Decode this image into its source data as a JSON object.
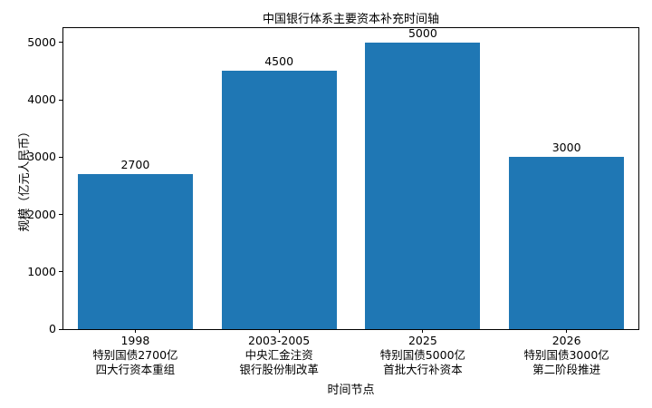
{
  "figure": {
    "title": "中国银行体系主要资本补充时间轴"
  },
  "chart_data": {
    "type": "bar",
    "title": "中国银行体系主要资本补充时间轴",
    "categories": [
      "1998\n特别国债2700亿\n四大行资本重组",
      "2003-2005\n中央汇金注资\n银行股份制改革",
      "2025\n特别国债5000亿\n首批大行补资本",
      "2026\n特别国债3000亿\n第二阶段推进"
    ],
    "values": [
      2700,
      4500,
      5000,
      3000
    ],
    "value_labels": [
      "2700",
      "4500",
      "5000",
      "3000"
    ],
    "xlabel": "时间节点",
    "ylabel": "规模（亿元人民币）",
    "ylim": [
      0,
      5250
    ],
    "yticks": [
      0,
      1000,
      2000,
      3000,
      4000,
      5000
    ],
    "bar_color": "#1f77b4",
    "bar_width_fraction": 0.8,
    "grid": false,
    "legend": null,
    "background_color": "#ffffff",
    "spine_color": "#000000"
  }
}
